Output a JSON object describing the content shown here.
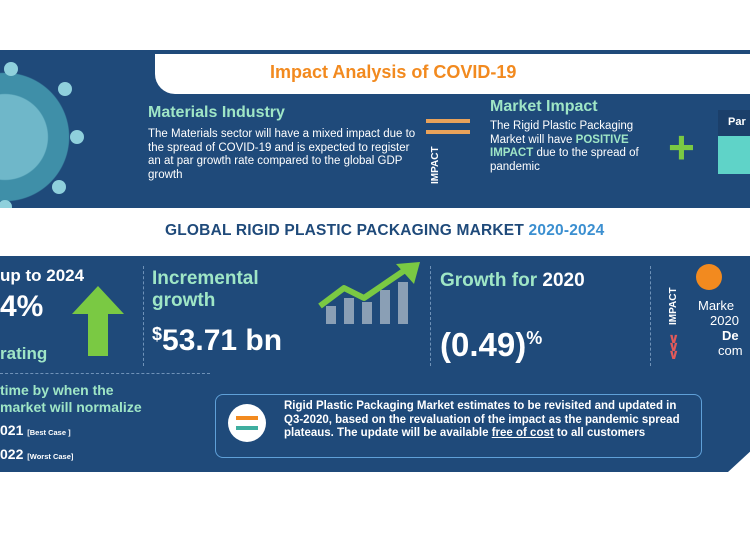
{
  "covid": {
    "title": "Impact Analysis of COVID-19",
    "materials_title": "Materials Industry",
    "materials_text": "The Materials sector will have a mixed impact due to the spread of COVID-19 and is expected to register an at par growth rate compared to the global GDP growth",
    "impact_label": "IMPACT",
    "market_impact_title": "Market Impact",
    "market_impact_pre": "The Rigid Plastic Packaging Market will have",
    "market_impact_highlight": "POSITIVE IMPACT",
    "market_impact_post": "due to the spread of pandemic",
    "partial_label": "Par"
  },
  "band": {
    "title": "GLOBAL RIGID PLASTIC PACKAGING MARKET",
    "years": "2020-2024"
  },
  "stats": {
    "c1_title": "up to 2024",
    "c1_pct": "4%",
    "c1_sub": "rating",
    "c2_title_1": "Incremental",
    "c2_title_2": "growth",
    "c2_symbol": "$",
    "c2_value": "53.71 bn",
    "c3_title": "Growth for",
    "c3_year": "2020",
    "c3_value": "(0.49)",
    "c3_suffix": "%",
    "c4_label": "IMPACT",
    "c4_l1": "Marke",
    "c4_l2": "2020",
    "c4_l3": "De",
    "c4_l4": "com"
  },
  "normalize": {
    "line1": "time by when the",
    "line2": "market will normalize",
    "best_year": "021",
    "best_case": "[Best Case ]",
    "worst_year": "022",
    "worst_case": "[Worst Case]"
  },
  "note": {
    "text_pre": "Rigid Plastic Packaging Market estimates to be revisited and updated in Q3-2020, based on the revaluation of the impact as the pandemic spread plateaus. The update will be available",
    "free": "free of cost",
    "text_post": "to all customers"
  },
  "colors": {
    "navy": "#1f4a7a",
    "mint": "#9fe6c6",
    "orange": "#f28a1f",
    "green": "#7ac943"
  }
}
